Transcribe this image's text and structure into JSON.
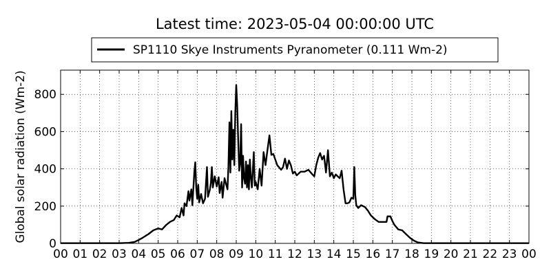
{
  "chart_data": {
    "type": "line",
    "title": "Latest time: 2023-05-04 00:00:00 UTC",
    "xlabel": "",
    "ylabel": "Global solar radiation (Wm-2)",
    "xlim": [
      0,
      24
    ],
    "ylim": [
      0,
      930
    ],
    "grid": true,
    "legend_placement": "top-center",
    "x_tick_labels": [
      "00",
      "01",
      "02",
      "03",
      "04",
      "05",
      "06",
      "07",
      "08",
      "09",
      "10",
      "11",
      "12",
      "13",
      "14",
      "15",
      "16",
      "17",
      "18",
      "19",
      "20",
      "21",
      "22",
      "23",
      "00"
    ],
    "y_ticks": [
      0,
      200,
      400,
      600,
      800
    ],
    "series": [
      {
        "name": "SP1110 Skye Instruments Pyranometer (0.111 Wm-2)",
        "color": "#000000",
        "points": [
          [
            0,
            1
          ],
          [
            1,
            1
          ],
          [
            2,
            1
          ],
          [
            3,
            1
          ],
          [
            3.5,
            3
          ],
          [
            3.8,
            8
          ],
          [
            4.0,
            18
          ],
          [
            4.2,
            30
          ],
          [
            4.5,
            50
          ],
          [
            4.75,
            70
          ],
          [
            5.0,
            80
          ],
          [
            5.2,
            75
          ],
          [
            5.4,
            98
          ],
          [
            5.6,
            115
          ],
          [
            5.8,
            125
          ],
          [
            5.95,
            150
          ],
          [
            6.1,
            140
          ],
          [
            6.2,
            190
          ],
          [
            6.3,
            150
          ],
          [
            6.35,
            215
          ],
          [
            6.45,
            200
          ],
          [
            6.55,
            280
          ],
          [
            6.6,
            230
          ],
          [
            6.7,
            290
          ],
          [
            6.75,
            205
          ],
          [
            6.85,
            380
          ],
          [
            6.9,
            435
          ],
          [
            6.95,
            300
          ],
          [
            7.0,
            240
          ],
          [
            7.05,
            315
          ],
          [
            7.1,
            220
          ],
          [
            7.2,
            265
          ],
          [
            7.3,
            215
          ],
          [
            7.4,
            240
          ],
          [
            7.5,
            410
          ],
          [
            7.55,
            250
          ],
          [
            7.65,
            290
          ],
          [
            7.7,
            325
          ],
          [
            7.75,
            410
          ],
          [
            7.8,
            300
          ],
          [
            7.9,
            360
          ],
          [
            8.0,
            305
          ],
          [
            8.1,
            355
          ],
          [
            8.15,
            270
          ],
          [
            8.25,
            330
          ],
          [
            8.3,
            245
          ],
          [
            8.4,
            350
          ],
          [
            8.5,
            310
          ],
          [
            8.55,
            290
          ],
          [
            8.6,
            420
          ],
          [
            8.65,
            650
          ],
          [
            8.7,
            380
          ],
          [
            8.75,
            710
          ],
          [
            8.8,
            450
          ],
          [
            8.85,
            610
          ],
          [
            8.9,
            420
          ],
          [
            8.95,
            700
          ],
          [
            9.0,
            850
          ],
          [
            9.05,
            740
          ],
          [
            9.1,
            560
          ],
          [
            9.15,
            390
          ],
          [
            9.2,
            430
          ],
          [
            9.25,
            640
          ],
          [
            9.3,
            300
          ],
          [
            9.35,
            470
          ],
          [
            9.4,
            350
          ],
          [
            9.45,
            320
          ],
          [
            9.5,
            440
          ],
          [
            9.55,
            300
          ],
          [
            9.6,
            420
          ],
          [
            9.65,
            290
          ],
          [
            9.7,
            450
          ],
          [
            9.75,
            350
          ],
          [
            9.8,
            300
          ],
          [
            9.9,
            490
          ],
          [
            9.95,
            310
          ],
          [
            10.0,
            330
          ],
          [
            10.1,
            290
          ],
          [
            10.2,
            400
          ],
          [
            10.3,
            310
          ],
          [
            10.4,
            490
          ],
          [
            10.5,
            420
          ],
          [
            10.6,
            500
          ],
          [
            10.7,
            580
          ],
          [
            10.8,
            475
          ],
          [
            10.9,
            480
          ],
          [
            11.0,
            450
          ],
          [
            11.1,
            420
          ],
          [
            11.3,
            395
          ],
          [
            11.4,
            410
          ],
          [
            11.5,
            455
          ],
          [
            11.6,
            400
          ],
          [
            11.7,
            445
          ],
          [
            11.8,
            420
          ],
          [
            11.9,
            375
          ],
          [
            12.0,
            385
          ],
          [
            12.1,
            365
          ],
          [
            12.3,
            385
          ],
          [
            12.5,
            385
          ],
          [
            12.7,
            395
          ],
          [
            12.9,
            370
          ],
          [
            13.0,
            360
          ],
          [
            13.1,
            420
          ],
          [
            13.2,
            460
          ],
          [
            13.3,
            485
          ],
          [
            13.4,
            450
          ],
          [
            13.5,
            470
          ],
          [
            13.6,
            380
          ],
          [
            13.7,
            500
          ],
          [
            13.8,
            360
          ],
          [
            13.9,
            380
          ],
          [
            14.0,
            350
          ],
          [
            14.1,
            370
          ],
          [
            14.2,
            360
          ],
          [
            14.3,
            350
          ],
          [
            14.4,
            390
          ],
          [
            14.5,
            290
          ],
          [
            14.6,
            215
          ],
          [
            14.7,
            215
          ],
          [
            14.8,
            220
          ],
          [
            14.9,
            245
          ],
          [
            15.0,
            240
          ],
          [
            15.05,
            410
          ],
          [
            15.1,
            260
          ],
          [
            15.15,
            205
          ],
          [
            15.25,
            190
          ],
          [
            15.4,
            205
          ],
          [
            15.6,
            195
          ],
          [
            15.75,
            175
          ],
          [
            15.9,
            150
          ],
          [
            16.1,
            130
          ],
          [
            16.3,
            115
          ],
          [
            16.5,
            115
          ],
          [
            16.7,
            115
          ],
          [
            16.75,
            145
          ],
          [
            16.9,
            145
          ],
          [
            17.0,
            120
          ],
          [
            17.1,
            100
          ],
          [
            17.3,
            75
          ],
          [
            17.5,
            70
          ],
          [
            17.7,
            50
          ],
          [
            17.9,
            30
          ],
          [
            18.1,
            15
          ],
          [
            18.3,
            5
          ],
          [
            18.6,
            1
          ],
          [
            19,
            1
          ],
          [
            20,
            1
          ],
          [
            21,
            1
          ],
          [
            22,
            1
          ],
          [
            23,
            1
          ],
          [
            24,
            1
          ]
        ]
      }
    ]
  }
}
